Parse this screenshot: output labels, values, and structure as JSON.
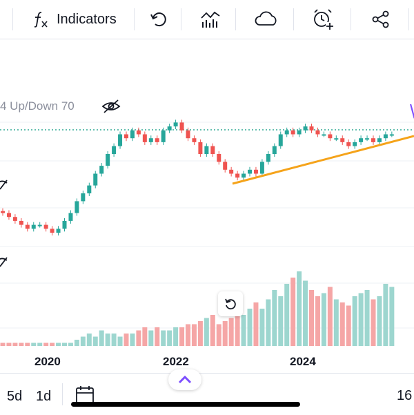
{
  "toolbar": {
    "indicators_label": "Indicators",
    "icons": [
      "fx-icon",
      "undo-icon",
      "chart-type-icon",
      "cloud-icon",
      "alarm-add-icon",
      "share-icon"
    ]
  },
  "indicator": {
    "label": "4 Up/Down 70"
  },
  "x_axis": {
    "labels": [
      "2020",
      "2022",
      "2024"
    ]
  },
  "intervals": {
    "five_day": "5d",
    "one_day": "1d",
    "right_value": "16"
  },
  "colors": {
    "up": "#26a69a",
    "down": "#ef5350",
    "up_volume": "#9dd6cf",
    "down_volume": "#f5a6a6",
    "trendline": "#f5a31a",
    "accent": "#7c4dff"
  },
  "chart_data": {
    "type": "candlestick",
    "x_axis_labels": [
      "2020",
      "2022",
      "2024"
    ],
    "price_level_line": "dotted-green",
    "close_values": [
      15,
      14,
      13,
      12,
      11,
      12,
      12,
      11,
      10,
      11,
      13,
      15,
      18,
      20,
      22,
      25,
      27,
      30,
      32,
      35,
      34,
      36,
      35,
      33,
      34,
      33,
      36,
      37,
      38,
      36,
      34,
      33,
      30,
      32,
      30,
      28,
      26,
      25,
      24,
      25,
      26,
      25,
      28,
      30,
      32,
      35,
      36,
      35,
      36,
      37,
      36,
      35,
      35,
      34,
      34,
      33,
      32,
      33,
      34,
      34,
      33,
      34,
      35,
      35
    ],
    "volume_values": [
      1,
      1,
      1,
      1,
      1,
      1,
      1,
      1,
      1,
      1,
      1,
      1,
      2,
      3,
      4,
      3,
      5,
      4,
      4,
      3,
      4,
      4,
      5,
      6,
      5,
      6,
      5,
      5,
      6,
      6,
      7,
      7,
      8,
      9,
      10,
      7,
      8,
      9,
      10,
      10,
      12,
      14,
      12,
      15,
      18,
      16,
      20,
      22,
      24,
      21,
      18,
      16,
      17,
      19,
      15,
      14,
      13,
      16,
      17,
      18,
      15,
      16,
      20,
      19
    ],
    "trendline": "rising support from late 2022 low to present"
  }
}
